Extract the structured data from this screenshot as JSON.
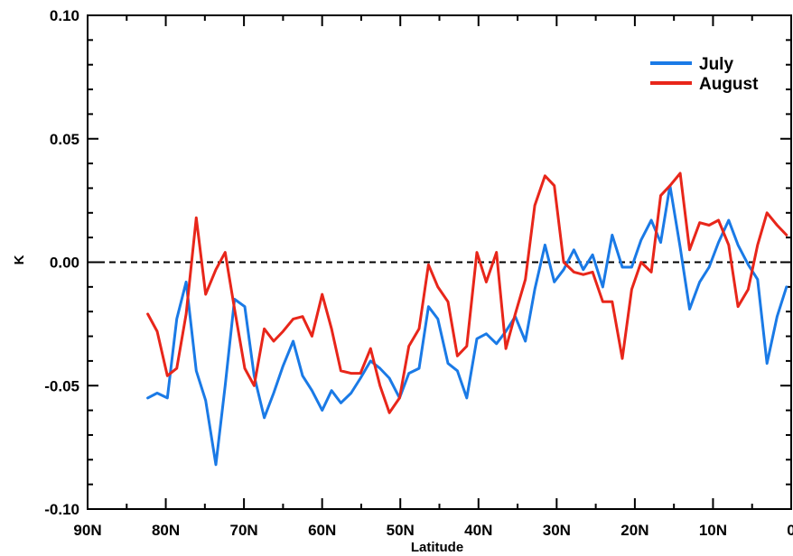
{
  "chart_data": {
    "type": "line",
    "title": "",
    "xlabel": "Latitude",
    "ylabel": "K",
    "xlim": [
      90,
      0
    ],
    "ylim": [
      -0.1,
      0.1
    ],
    "x_ticks": [
      90,
      80,
      70,
      60,
      50,
      40,
      30,
      20,
      10,
      0
    ],
    "x_tick_labels": [
      "90N",
      "80N",
      "70N",
      "60N",
      "50N",
      "40N",
      "30N",
      "20N",
      "10N",
      "0"
    ],
    "y_ticks": [
      -0.1,
      -0.05,
      0.0,
      0.05,
      0.1
    ],
    "y_tick_labels": [
      "-0.10",
      "-0.05",
      "0.00",
      "0.05",
      "0.10"
    ],
    "reference_line": {
      "y": 0.0,
      "style": "dashed",
      "color": "#000000"
    },
    "legend_position": "top-right",
    "grid": false,
    "series": [
      {
        "name": "July",
        "color": "#1a7ae6",
        "x": [
          82.3,
          81.1,
          79.8,
          78.6,
          77.4,
          76.1,
          74.9,
          73.6,
          72.4,
          71.2,
          69.9,
          68.7,
          67.4,
          66.2,
          65.0,
          63.7,
          62.5,
          61.3,
          60.0,
          58.8,
          57.6,
          56.3,
          55.1,
          53.8,
          52.6,
          51.4,
          50.1,
          48.9,
          47.6,
          46.4,
          45.2,
          43.9,
          42.7,
          41.5,
          40.2,
          39.0,
          37.7,
          36.5,
          35.3,
          34.0,
          32.8,
          31.5,
          30.3,
          29.1,
          27.8,
          26.6,
          25.4,
          24.1,
          22.9,
          21.6,
          20.4,
          19.2,
          17.9,
          16.7,
          15.5,
          14.2,
          13.0,
          11.7,
          10.5,
          9.3,
          8.0,
          6.8,
          5.5,
          4.3,
          3.1,
          1.8,
          0.6
        ],
        "y": [
          -0.055,
          -0.053,
          -0.055,
          -0.023,
          -0.008,
          -0.044,
          -0.056,
          -0.082,
          -0.05,
          -0.015,
          -0.018,
          -0.046,
          -0.063,
          -0.053,
          -0.042,
          -0.032,
          -0.046,
          -0.052,
          -0.06,
          -0.052,
          -0.057,
          -0.053,
          -0.047,
          -0.04,
          -0.043,
          -0.047,
          -0.055,
          -0.045,
          -0.043,
          -0.018,
          -0.023,
          -0.041,
          -0.044,
          -0.055,
          -0.031,
          -0.029,
          -0.033,
          -0.028,
          -0.022,
          -0.032,
          -0.011,
          0.007,
          -0.008,
          -0.003,
          0.005,
          -0.003,
          0.003,
          -0.01,
          0.011,
          -0.002,
          -0.002,
          0.009,
          0.017,
          0.008,
          0.031,
          0.006,
          -0.019,
          -0.008,
          -0.002,
          0.008,
          0.017,
          0.007,
          -0.001,
          -0.007,
          -0.041,
          -0.022,
          -0.01
        ]
      },
      {
        "name": "August",
        "color": "#e8261a",
        "x": [
          82.3,
          81.1,
          79.8,
          78.6,
          77.4,
          76.1,
          74.9,
          73.6,
          72.4,
          71.2,
          69.9,
          68.7,
          67.4,
          66.2,
          65.0,
          63.7,
          62.5,
          61.3,
          60.0,
          58.8,
          57.6,
          56.3,
          55.1,
          53.8,
          52.6,
          51.4,
          50.1,
          48.9,
          47.6,
          46.4,
          45.2,
          43.9,
          42.7,
          41.5,
          40.2,
          39.0,
          37.7,
          36.5,
          35.3,
          34.0,
          32.8,
          31.5,
          30.3,
          29.1,
          27.8,
          26.6,
          25.4,
          24.1,
          22.9,
          21.6,
          20.4,
          19.2,
          17.9,
          16.7,
          15.5,
          14.2,
          13.0,
          11.7,
          10.5,
          9.3,
          8.0,
          6.8,
          5.5,
          4.3,
          3.1,
          1.8,
          0.6
        ],
        "y": [
          -0.021,
          -0.028,
          -0.046,
          -0.043,
          -0.021,
          0.018,
          -0.013,
          -0.003,
          0.004,
          -0.019,
          -0.043,
          -0.05,
          -0.027,
          -0.032,
          -0.028,
          -0.023,
          -0.022,
          -0.03,
          -0.013,
          -0.027,
          -0.044,
          -0.045,
          -0.045,
          -0.035,
          -0.05,
          -0.061,
          -0.055,
          -0.034,
          -0.027,
          -0.001,
          -0.01,
          -0.016,
          -0.038,
          -0.034,
          0.004,
          -0.008,
          0.004,
          -0.035,
          -0.021,
          -0.007,
          0.023,
          0.035,
          0.031,
          0.0,
          -0.004,
          -0.005,
          -0.004,
          -0.016,
          -0.016,
          -0.039,
          -0.011,
          0.0,
          -0.004,
          0.027,
          0.031,
          0.036,
          0.005,
          0.016,
          0.015,
          0.017,
          0.007,
          -0.018,
          -0.011,
          0.007,
          0.02,
          0.015,
          0.011
        ]
      }
    ]
  }
}
